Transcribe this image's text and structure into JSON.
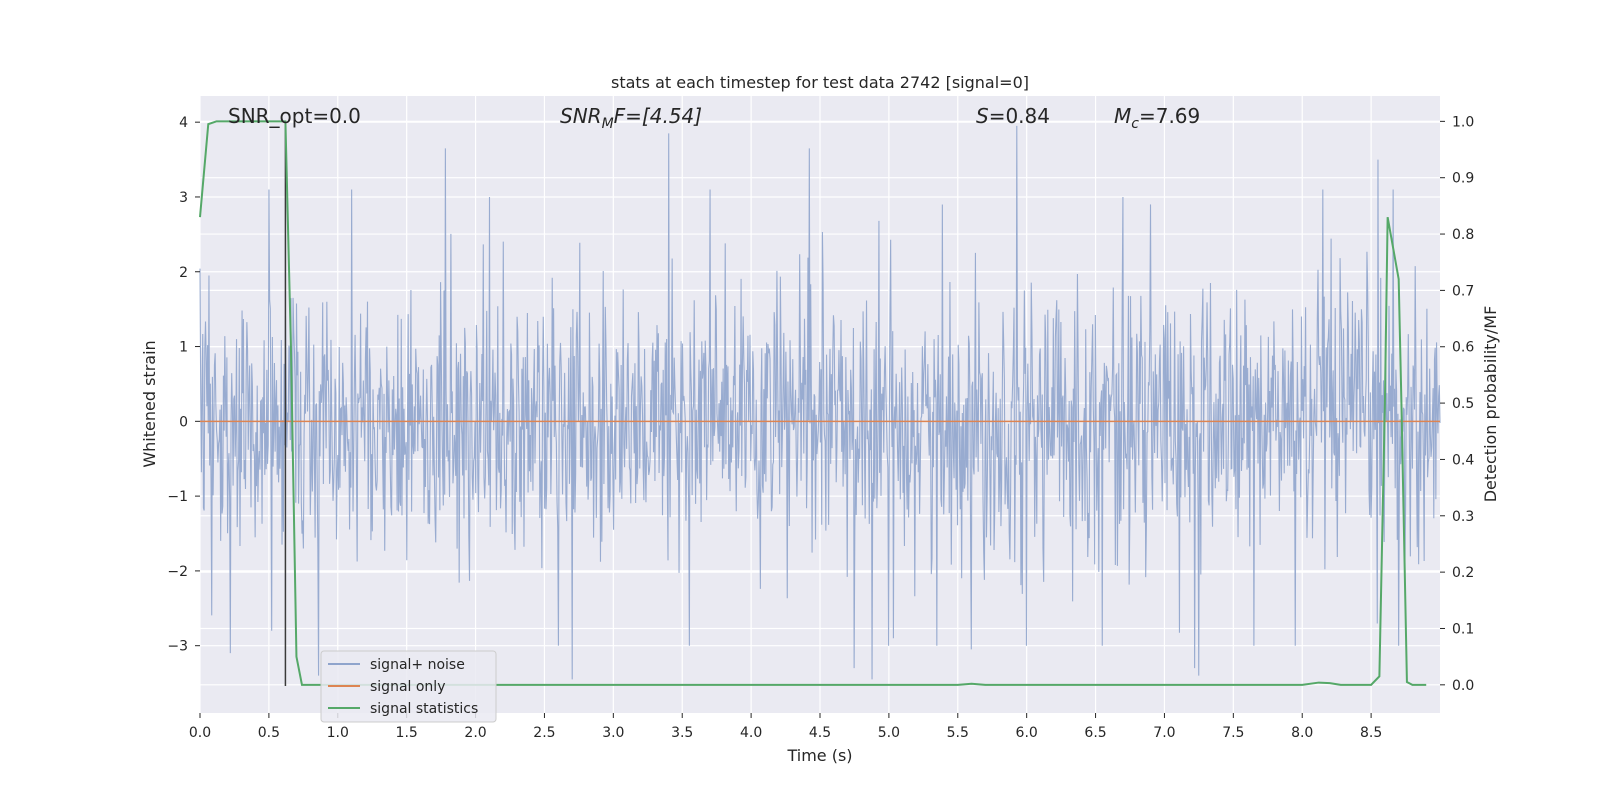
{
  "chart_data": {
    "type": "line",
    "title": "stats at each timestep for test data 2742 [signal=0]",
    "xlabel": "Time (s)",
    "ylabel_left": "Whitened strain",
    "ylabel_right": "Detection probability/MF",
    "xlim": [
      0.0,
      9.0
    ],
    "ylim_left": [
      -3.9,
      4.35
    ],
    "ylim_right": [
      -0.05,
      1.045
    ],
    "x_ticks": [
      "0.0",
      "0.5",
      "1.0",
      "1.5",
      "2.0",
      "2.5",
      "3.0",
      "3.5",
      "4.0",
      "4.5",
      "5.0",
      "5.5",
      "6.0",
      "6.5",
      "7.0",
      "7.5",
      "8.0",
      "8.5"
    ],
    "x_tick_values": [
      0.0,
      0.5,
      1.0,
      1.5,
      2.0,
      2.5,
      3.0,
      3.5,
      4.0,
      4.5,
      5.0,
      5.5,
      6.0,
      6.5,
      7.0,
      7.5,
      8.0,
      8.5
    ],
    "y_ticks_left": [
      "−3",
      "−2",
      "−1",
      "0",
      "1",
      "2",
      "3",
      "4"
    ],
    "y_tick_values_left": [
      -3,
      -2,
      -1,
      0,
      1,
      2,
      3,
      4
    ],
    "y_ticks_right": [
      "0.0",
      "0.1",
      "0.2",
      "0.3",
      "0.4",
      "0.5",
      "0.6",
      "0.7",
      "0.8",
      "0.9",
      "1.0"
    ],
    "y_tick_values_right": [
      0.0,
      0.1,
      0.2,
      0.3,
      0.4,
      0.5,
      0.6,
      0.7,
      0.8,
      0.9,
      1.0
    ],
    "grid": true,
    "legend_position": "lower-left",
    "annotations": {
      "snr_opt": "SNR_opt=0.0",
      "snr_mf_sym": "SNR",
      "snr_mf_sub": "M",
      "snr_mf_rest": "F=[4.54]",
      "s_sym": "S",
      "s_rest": "=0.84",
      "mc_sym": "M",
      "mc_sub": "c",
      "mc_rest": "=7.69"
    },
    "marker_line_x": 0.62,
    "series": [
      {
        "name": "signal+ noise",
        "color": "#8fa4cc",
        "axis": "left",
        "noise": {
          "n_samples": 1800,
          "sigma": 0.9,
          "seed": 2742
        },
        "peaks": [
          [
            0.5,
            3.1
          ],
          [
            0.52,
            -2.8
          ],
          [
            0.22,
            -3.1
          ],
          [
            0.86,
            -3.4
          ],
          [
            1.1,
            3.1
          ],
          [
            1.78,
            3.65
          ],
          [
            2.6,
            -3.0
          ],
          [
            2.7,
            -3.45
          ],
          [
            3.4,
            3.85
          ],
          [
            3.55,
            -3.0
          ],
          [
            4.42,
            3.65
          ],
          [
            4.75,
            -3.3
          ],
          [
            4.88,
            -3.45
          ],
          [
            5.0,
            -3.0
          ],
          [
            5.35,
            -3.0
          ],
          [
            5.6,
            -3.05
          ],
          [
            5.93,
            3.95
          ],
          [
            6.0,
            -3.0
          ],
          [
            6.55,
            -3.0
          ],
          [
            7.25,
            -3.4
          ],
          [
            7.22,
            -3.3
          ],
          [
            7.95,
            -3.0
          ],
          [
            8.15,
            3.1
          ],
          [
            8.55,
            3.5
          ],
          [
            8.66,
            3.1
          ],
          [
            8.7,
            -3.0
          ],
          [
            7.65,
            -3.0
          ],
          [
            3.7,
            3.1
          ],
          [
            6.7,
            3.0
          ],
          [
            2.1,
            3.0
          ]
        ]
      },
      {
        "name": "signal only",
        "color": "#dd8452",
        "axis": "left",
        "x": [
          0.0,
          9.0
        ],
        "y": [
          0.0,
          0.0
        ]
      },
      {
        "name": "signal statistics",
        "color": "#55a868",
        "axis": "right",
        "x": [
          0.0,
          0.06,
          0.12,
          0.2,
          0.35,
          0.5,
          0.58,
          0.62,
          0.66,
          0.7,
          0.74,
          0.8,
          0.9,
          1.5,
          2.5,
          3.5,
          4.5,
          5.5,
          5.6,
          5.7,
          6.5,
          7.5,
          8.0,
          8.12,
          8.2,
          8.28,
          8.4,
          8.5,
          8.56,
          8.6,
          8.62,
          8.7,
          8.72,
          8.76,
          8.8,
          8.9
        ],
        "y": [
          0.83,
          0.995,
          1.0,
          1.0,
          1.0,
          1.0,
          1.0,
          1.0,
          0.6,
          0.05,
          0.0,
          0.0,
          0.0,
          0.0,
          0.0,
          0.0,
          0.0,
          0.0,
          0.002,
          0.0,
          0.0,
          0.0,
          0.0,
          0.004,
          0.003,
          0.0,
          0.0,
          0.0,
          0.015,
          0.5,
          0.83,
          0.72,
          0.5,
          0.005,
          0.0,
          0.0
        ]
      }
    ]
  }
}
